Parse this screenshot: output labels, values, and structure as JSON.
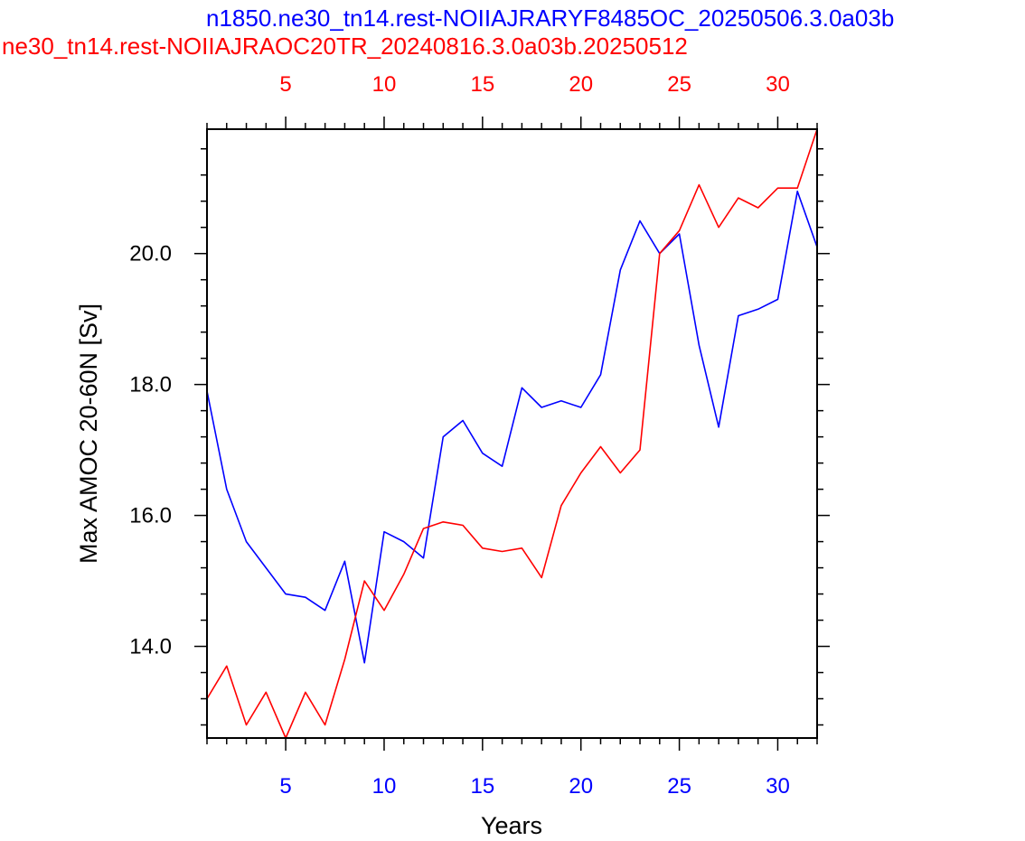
{
  "chart_data": {
    "type": "line",
    "title_top": "n1850.ne30_tn14.rest-NOIIAJRARYF8485OC_20250506.3.0a03b",
    "title_bottom": "ne30_tn14.rest-NOIIAJRAOC20TR_20240816.3.0a03b.20250512",
    "xlabel": "Years",
    "ylabel": "Max AMOC 20-60N [Sv]",
    "xlim": [
      1,
      32
    ],
    "ylim": [
      12.6,
      21.9
    ],
    "x_ticks": [
      "5",
      "10",
      "15",
      "20",
      "25",
      "30"
    ],
    "y_ticks": [
      "14.0",
      "16.0",
      "18.0",
      "20.0"
    ],
    "top_x_ticks": [
      "5",
      "10",
      "15",
      "20",
      "25",
      "30"
    ],
    "grid": false,
    "colors": {
      "series_blue": "#0000ff",
      "series_red": "#ff0000",
      "axes": "#000000"
    },
    "series": [
      {
        "color": "#0000ff",
        "x": [
          1,
          2,
          3,
          4,
          5,
          6,
          7,
          8,
          9,
          10,
          11,
          12,
          13,
          14,
          15,
          16,
          17,
          18,
          19,
          20,
          21,
          22,
          23,
          24,
          25,
          26,
          27,
          28,
          29,
          30,
          31,
          32
        ],
        "values": [
          17.9,
          16.4,
          15.6,
          15.2,
          14.8,
          14.75,
          14.55,
          15.3,
          13.75,
          15.75,
          15.6,
          15.35,
          17.2,
          17.45,
          16.95,
          16.75,
          17.95,
          17.65,
          17.75,
          17.65,
          18.15,
          19.75,
          20.5,
          20.0,
          20.3,
          18.6,
          17.35,
          19.05,
          19.15,
          19.3,
          20.95,
          20.1
        ]
      },
      {
        "color": "#ff0000",
        "x": [
          1,
          2,
          3,
          4,
          5,
          6,
          7,
          8,
          9,
          10,
          11,
          12,
          13,
          14,
          15,
          16,
          17,
          18,
          19,
          20,
          21,
          22,
          23,
          24,
          25,
          26,
          27,
          28,
          29,
          30,
          31,
          32
        ],
        "values": [
          13.2,
          13.7,
          12.8,
          13.3,
          12.6,
          13.3,
          12.8,
          13.8,
          15.0,
          14.55,
          15.1,
          15.8,
          15.9,
          15.85,
          15.5,
          15.45,
          15.5,
          15.05,
          16.15,
          16.65,
          17.05,
          16.65,
          17.0,
          20.0,
          20.35,
          21.05,
          20.4,
          20.85,
          20.7,
          21.0,
          21.0,
          21.9
        ]
      }
    ]
  }
}
